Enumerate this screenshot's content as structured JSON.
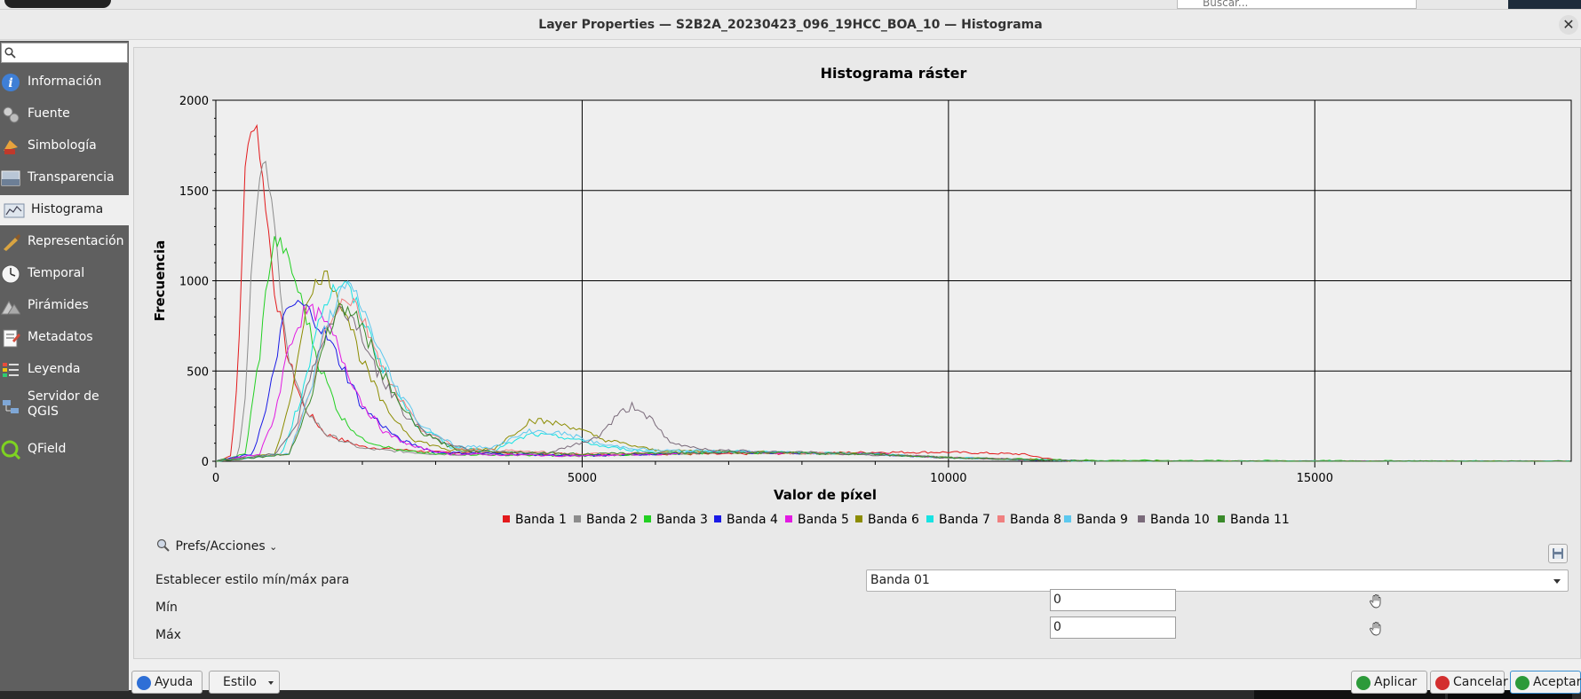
{
  "dialog": {
    "title": "Layer Properties — S2B2A_20230423_096_19HCC_BOA_10 — Histograma",
    "close_glyph": "✕"
  },
  "background": {
    "search_placeholder": "Buscar..."
  },
  "sidebar": {
    "search_placeholder": "",
    "items": [
      {
        "label": "Información",
        "icon": "info-icon"
      },
      {
        "label": "Fuente",
        "icon": "source-icon"
      },
      {
        "label": "Simbología",
        "icon": "symbology-icon"
      },
      {
        "label": "Transparencia",
        "icon": "transparency-icon"
      },
      {
        "label": "Histograma",
        "icon": "histogram-icon",
        "selected": true
      },
      {
        "label": "Representación",
        "icon": "rendering-icon"
      },
      {
        "label": "Temporal",
        "icon": "clock-icon"
      },
      {
        "label": "Pirámides",
        "icon": "pyramids-icon"
      },
      {
        "label": "Metadatos",
        "icon": "metadata-icon"
      },
      {
        "label": "Leyenda",
        "icon": "legend-icon"
      },
      {
        "label": "Servidor de QGIS",
        "icon": "server-icon"
      },
      {
        "label": "QField",
        "icon": "qfield-icon"
      }
    ]
  },
  "chart_data": {
    "type": "line",
    "title": "Histograma ráster",
    "xlabel": "Valor de píxel",
    "ylabel": "Frecuencia",
    "xlim": [
      0,
      18500
    ],
    "ylim": [
      0,
      2000
    ],
    "xticks": [
      "0",
      "5000",
      "10000",
      "15000"
    ],
    "yticks": [
      "0",
      "500",
      "1000",
      "1500",
      "2000"
    ],
    "grid": true,
    "legend_position": "bottom",
    "series": [
      {
        "name": "Banda 1",
        "color": "#e31a1c",
        "x": [
          0,
          200,
          300,
          400,
          500,
          550,
          600,
          700,
          800,
          1000,
          1200,
          1500,
          2000,
          3000,
          5000,
          7000,
          9000,
          10000,
          11000,
          11500,
          12000,
          18500
        ],
        "y": [
          0,
          30,
          450,
          1650,
          1850,
          1900,
          1700,
          1350,
          950,
          550,
          300,
          150,
          80,
          50,
          40,
          40,
          50,
          50,
          40,
          5,
          0,
          0
        ]
      },
      {
        "name": "Banda 2",
        "color": "#8c8c8c",
        "x": [
          0,
          300,
          400,
          500,
          600,
          650,
          700,
          800,
          900,
          1000,
          1200,
          1500,
          2000,
          3000,
          5000,
          7000,
          9000,
          10000,
          12000,
          18500
        ],
        "y": [
          0,
          20,
          350,
          1200,
          1550,
          1650,
          1600,
          1300,
          900,
          550,
          300,
          150,
          70,
          40,
          30,
          50,
          40,
          20,
          0,
          0
        ]
      },
      {
        "name": "Banda 3",
        "color": "#22d022",
        "x": [
          0,
          400,
          600,
          700,
          800,
          900,
          1000,
          1200,
          1400,
          1700,
          2000,
          2500,
          3000,
          5000,
          7000,
          9000,
          10000,
          12000,
          16000,
          18500
        ],
        "y": [
          0,
          40,
          600,
          1000,
          1220,
          1200,
          1100,
          850,
          550,
          250,
          120,
          60,
          40,
          30,
          50,
          40,
          20,
          5,
          2,
          0
        ]
      },
      {
        "name": "Banda 4",
        "color": "#1a1ae6",
        "x": [
          0,
          500,
          700,
          900,
          1000,
          1100,
          1200,
          1300,
          1500,
          1700,
          2000,
          2500,
          3000,
          5000,
          7000,
          9000,
          10000,
          12000,
          18500
        ],
        "y": [
          0,
          40,
          300,
          750,
          850,
          870,
          860,
          820,
          700,
          550,
          300,
          120,
          50,
          30,
          50,
          40,
          20,
          0,
          0
        ]
      },
      {
        "name": "Banda 5",
        "color": "#e21ae2",
        "x": [
          0,
          600,
          800,
          1000,
          1200,
          1300,
          1400,
          1600,
          1800,
          2000,
          2300,
          2700,
          3200,
          5000,
          7000,
          9000,
          10000,
          12000,
          18500
        ],
        "y": [
          0,
          40,
          250,
          650,
          820,
          830,
          810,
          700,
          500,
          320,
          160,
          80,
          40,
          30,
          50,
          40,
          20,
          0,
          0
        ]
      },
      {
        "name": "Banda 6",
        "color": "#8c8c00",
        "x": [
          0,
          800,
          1000,
          1200,
          1400,
          1500,
          1600,
          1800,
          2000,
          2300,
          2700,
          3200,
          3800,
          4300,
          4800,
          5300,
          6000,
          7000,
          9000,
          10000,
          12000,
          18500
        ],
        "y": [
          0,
          40,
          300,
          800,
          1020,
          1030,
          980,
          800,
          550,
          300,
          120,
          60,
          70,
          230,
          200,
          120,
          60,
          55,
          40,
          20,
          0,
          0
        ]
      },
      {
        "name": "Banda 7",
        "color": "#18e2e2",
        "x": [
          0,
          900,
          1200,
          1400,
          1600,
          1700,
          1800,
          2000,
          2300,
          2700,
          3200,
          3800,
          4300,
          4800,
          5300,
          6000,
          7000,
          9000,
          10000,
          12000,
          18500
        ],
        "y": [
          0,
          40,
          400,
          800,
          950,
          980,
          960,
          800,
          500,
          220,
          80,
          60,
          150,
          130,
          80,
          50,
          55,
          40,
          20,
          0,
          0
        ]
      },
      {
        "name": "Banda 8",
        "color": "#f08080",
        "x": [
          0,
          1000,
          1300,
          1500,
          1700,
          1800,
          1900,
          2100,
          2400,
          2800,
          3300,
          5000,
          7000,
          9000,
          10000,
          12000,
          18500
        ],
        "y": [
          0,
          40,
          400,
          750,
          880,
          900,
          880,
          700,
          420,
          180,
          70,
          40,
          50,
          40,
          20,
          0,
          0
        ]
      },
      {
        "name": "Banda 9",
        "color": "#5cc8ee",
        "x": [
          0,
          1000,
          1300,
          1500,
          1700,
          1800,
          1900,
          2100,
          2400,
          2800,
          3300,
          3800,
          4300,
          4800,
          5300,
          6000,
          7000,
          9000,
          10000,
          12000,
          18500
        ],
        "y": [
          0,
          40,
          400,
          750,
          930,
          960,
          940,
          750,
          450,
          200,
          80,
          80,
          170,
          150,
          90,
          60,
          55,
          40,
          20,
          0,
          0
        ]
      },
      {
        "name": "Banda 10",
        "color": "#7a6a7a",
        "x": [
          0,
          800,
          1100,
          1300,
          1500,
          1700,
          1900,
          2200,
          2600,
          3000,
          3500,
          4500,
          5200,
          5500,
          5700,
          5900,
          6200,
          6800,
          8000,
          10000,
          12000,
          18500
        ],
        "y": [
          0,
          40,
          200,
          500,
          700,
          850,
          780,
          500,
          250,
          120,
          60,
          40,
          130,
          260,
          310,
          250,
          100,
          60,
          50,
          20,
          0,
          0
        ]
      },
      {
        "name": "Banda 11",
        "color": "#3a8a2a",
        "x": [
          0,
          1000,
          1300,
          1500,
          1700,
          1900,
          2100,
          2400,
          2800,
          3300,
          5000,
          7000,
          9000,
          10000,
          12000,
          18500
        ],
        "y": [
          0,
          40,
          350,
          700,
          850,
          820,
          650,
          380,
          160,
          60,
          40,
          50,
          40,
          20,
          0,
          0
        ]
      }
    ]
  },
  "panel": {
    "prefs_label": "Prefs/Acciones",
    "prefs_caret": "⌄",
    "minmax_label": "Establecer estilo mín/máx para",
    "band_selected": "Banda 01",
    "min_label": "Mín",
    "min_value": "0",
    "max_label": "Máx",
    "max_value": "0"
  },
  "buttons": {
    "help": "Ayuda",
    "style": "Estilo",
    "apply": "Aplicar",
    "cancel": "Cancelar",
    "accept": "Aceptar"
  }
}
